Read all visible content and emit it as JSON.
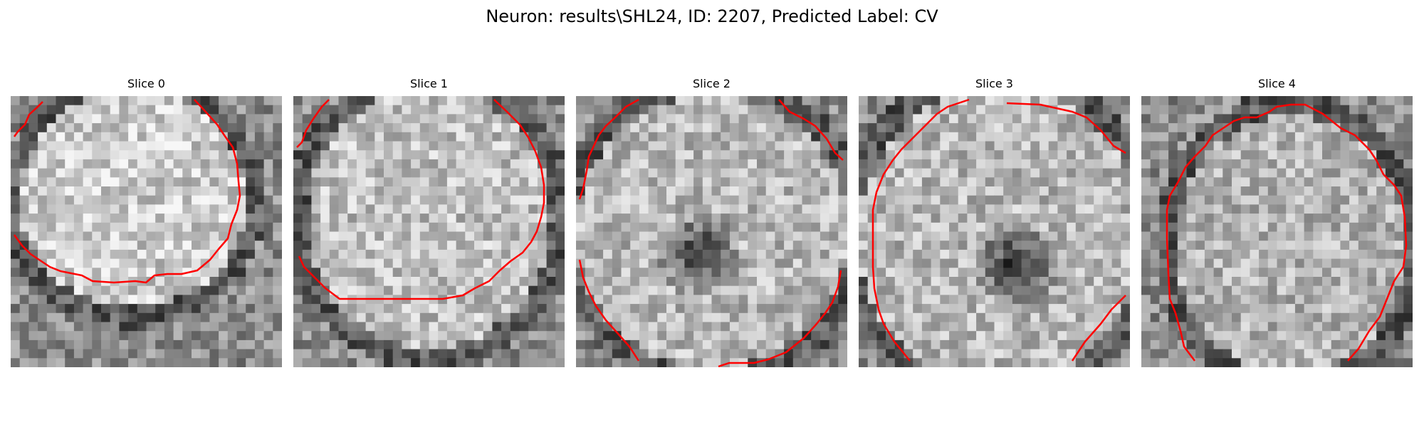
{
  "figure": {
    "title": "Neuron: results\\SHL24, ID: 2207, Predicted Label: CV"
  },
  "panels": [
    {
      "title": "Slice 0"
    },
    {
      "title": "Slice 1"
    },
    {
      "title": "Slice 2"
    },
    {
      "title": "Slice 3"
    },
    {
      "title": "Slice 4"
    }
  ],
  "colors": {
    "contour": "#ff0000",
    "background": "#ffffff"
  }
}
